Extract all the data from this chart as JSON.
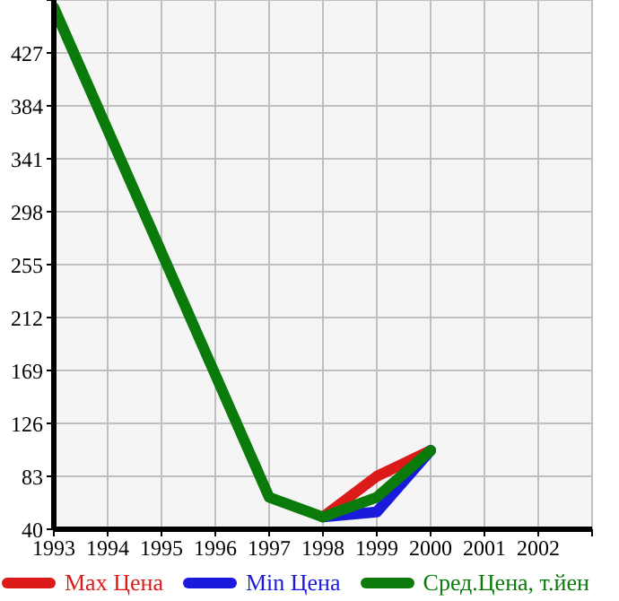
{
  "chart_data": {
    "type": "line",
    "xlim": [
      1993,
      2003
    ],
    "xticks": [
      1993,
      1994,
      1995,
      1996,
      1997,
      1998,
      1999,
      2000,
      2001,
      2002,
      {
        "value": 2003,
        "label": null
      }
    ],
    "ylim": [
      40,
      470
    ],
    "yticks": [
      40,
      83,
      126,
      169,
      212,
      255,
      298,
      341,
      384,
      427,
      {
        "value": 470,
        "label": null
      }
    ],
    "grid": true,
    "legend": "bottom",
    "marker": "none",
    "line_style": "solid",
    "series": [
      {
        "name": "Max Цена",
        "color": "#dd1a1a",
        "x": [
          1998,
          1999,
          2000
        ],
        "values": [
          50,
          83,
          104
        ]
      },
      {
        "name": "Min Цена",
        "color": "#1a1add",
        "x": [
          1998,
          1999,
          2000
        ],
        "values": [
          50,
          54,
          104
        ]
      },
      {
        "name": "Сред.Цена, т.йен",
        "color": "#0a7a0a",
        "x": [
          1993,
          1997,
          1998,
          1999,
          2000
        ],
        "values": [
          464,
          66,
          50,
          66,
          104
        ]
      }
    ]
  }
}
